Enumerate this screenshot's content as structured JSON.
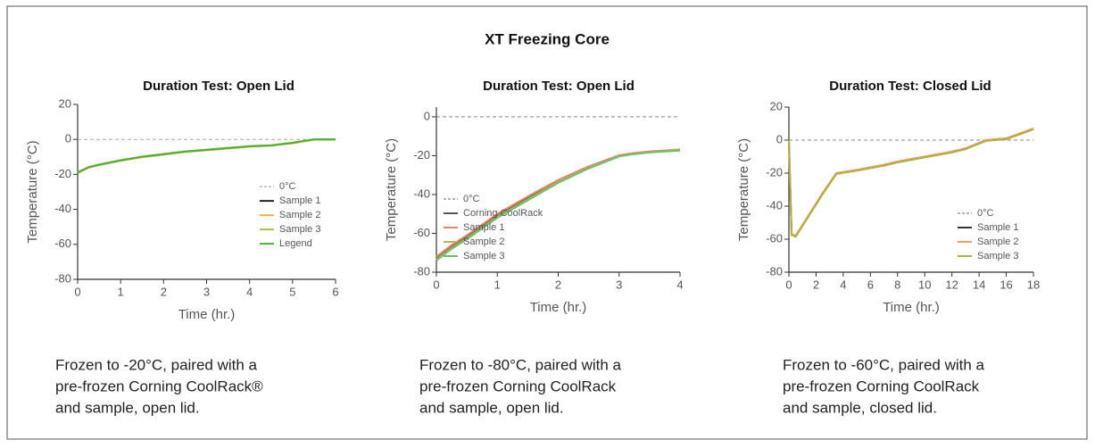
{
  "title": "XT Freezing Core",
  "chart_data": [
    {
      "type": "line",
      "title": "Duration Test: Open Lid",
      "xlabel": "Time (hr.)",
      "ylabel": "Temperature (°C)",
      "x": [
        0,
        0.25,
        0.5,
        1,
        1.5,
        2,
        2.5,
        3,
        3.5,
        4,
        4.5,
        5,
        5.5,
        6
      ],
      "xlim": [
        0,
        6
      ],
      "xticks": [
        0,
        1,
        2,
        3,
        4,
        5,
        6
      ],
      "ylim": [
        -80,
        20
      ],
      "yticks": [
        -80,
        -60,
        -40,
        -20,
        0,
        20
      ],
      "legend": "center right",
      "series": [
        {
          "name": "0°C",
          "color": "#aaaaaa",
          "dashed": true,
          "values": [
            0,
            0,
            0,
            0,
            0,
            0,
            0,
            0,
            0,
            0,
            0,
            0,
            0,
            0
          ]
        },
        {
          "name": "Sample 1",
          "color": "#222222",
          "values": [
            -19,
            -16,
            -14.5,
            -12,
            -10,
            -8.5,
            -7,
            -6,
            -5,
            -4,
            -3.5,
            -2,
            0,
            0
          ]
        },
        {
          "name": "Sample 2",
          "color": "#f5b041",
          "values": [
            -19.3,
            -16.2,
            -14.7,
            -12.2,
            -10.2,
            -8.7,
            -7.2,
            -6.2,
            -5.2,
            -4.2,
            -3.6,
            -2.2,
            -0.2,
            0
          ]
        },
        {
          "name": "Sample 3",
          "color": "#a5c23a",
          "values": [
            -18.8,
            -15.8,
            -14.3,
            -11.8,
            -9.8,
            -8.3,
            -6.8,
            -5.8,
            -4.8,
            -3.8,
            -3.3,
            -1.8,
            0.1,
            0
          ]
        },
        {
          "name": "Legend",
          "color": "#4caf3a",
          "values": [
            -19,
            -16,
            -14.5,
            -12,
            -10,
            -8.5,
            -7,
            -6,
            -5,
            -4,
            -3.5,
            -2,
            0,
            0
          ]
        }
      ]
    },
    {
      "type": "line",
      "title": "Duration Test: Open Lid",
      "xlabel": "Time (hr.)",
      "ylabel": "Temperature (°C)",
      "x": [
        0,
        0.25,
        0.5,
        1,
        1.5,
        2,
        2.5,
        3,
        3.2,
        3.5,
        4
      ],
      "xlim": [
        0,
        4
      ],
      "xticks": [
        0,
        1,
        2,
        3,
        4
      ],
      "ylim": [
        -80,
        5
      ],
      "yticks": [
        -80,
        -60,
        -40,
        -20,
        0
      ],
      "legend": "lower left",
      "series": [
        {
          "name": "0°C",
          "color": "#888888",
          "dashed": true,
          "values": [
            0,
            0,
            0,
            0,
            0,
            0,
            0,
            0,
            0,
            0,
            0
          ]
        },
        {
          "name": "Corning CoolRack",
          "color": "#555555",
          "values": [
            -73,
            -67,
            -62,
            -51,
            -42,
            -33,
            -26,
            -20,
            -19,
            -18,
            -17
          ]
        },
        {
          "name": "Sample 1",
          "color": "#e8826a",
          "values": [
            -72,
            -66,
            -61,
            -50,
            -41,
            -32.5,
            -25.5,
            -19.8,
            -18.8,
            -17.8,
            -16.8
          ]
        },
        {
          "name": "Sample 2",
          "color": "#b5b84a",
          "values": [
            -73.5,
            -67.5,
            -62.5,
            -51.5,
            -42.5,
            -33.5,
            -26.3,
            -20.2,
            -19.2,
            -18.2,
            -17.2
          ]
        },
        {
          "name": "Sample 3",
          "color": "#6cbf6c",
          "values": [
            -74,
            -68,
            -63,
            -52,
            -43,
            -34,
            -26.6,
            -20.4,
            -19.4,
            -18.4,
            -17.4
          ]
        }
      ]
    },
    {
      "type": "line",
      "title": "Duration Test: Closed Lid",
      "xlabel": "Time (hr.)",
      "ylabel": "Temperature (°C)",
      "x": [
        0,
        0.2,
        0.5,
        1.5,
        2.5,
        3.5,
        5,
        7,
        8,
        10,
        12,
        13,
        14.5,
        16,
        18
      ],
      "xlim": [
        0,
        18
      ],
      "xticks": [
        0,
        2,
        4,
        6,
        8,
        10,
        12,
        14,
        16,
        18
      ],
      "ylim": [
        -80,
        20
      ],
      "yticks": [
        -80,
        -60,
        -40,
        -20,
        0,
        20
      ],
      "legend": "lower right",
      "series": [
        {
          "name": "0°C",
          "color": "#888888",
          "dashed": true,
          "values": [
            0,
            0,
            0,
            0,
            0,
            0,
            0,
            0,
            0,
            0,
            0,
            0,
            0,
            0,
            0
          ]
        },
        {
          "name": "Sample 1",
          "color": "#333333",
          "values": [
            0,
            -57,
            -58,
            -45,
            -32,
            -20,
            -18,
            -15,
            -13,
            -10,
            -7,
            -5,
            0,
            1,
            7
          ]
        },
        {
          "name": "Sample 2",
          "color": "#f0a060",
          "values": [
            0,
            -57,
            -58,
            -45,
            -32,
            -20,
            -18,
            -15,
            -13,
            -10,
            -7,
            -5,
            0,
            1,
            7
          ]
        },
        {
          "name": "Sample 3",
          "color": "#b0b040",
          "values": [
            0,
            -57.5,
            -58.5,
            -45.5,
            -32.5,
            -20.5,
            -18.5,
            -15.5,
            -13.5,
            -10.5,
            -7.5,
            -5.5,
            -0.5,
            0.5,
            6.5
          ]
        }
      ]
    }
  ],
  "captions": [
    [
      "Frozen to -20°C, paired with a",
      "pre-frozen Corning CoolRack®",
      "and sample, open lid."
    ],
    [
      "Frozen to -80°C, paired with a",
      "pre-frozen Corning CoolRack",
      "and sample, open lid."
    ],
    [
      "Frozen to -60°C, paired with a",
      "pre-frozen Corning CoolRack",
      "and sample, closed lid."
    ]
  ]
}
